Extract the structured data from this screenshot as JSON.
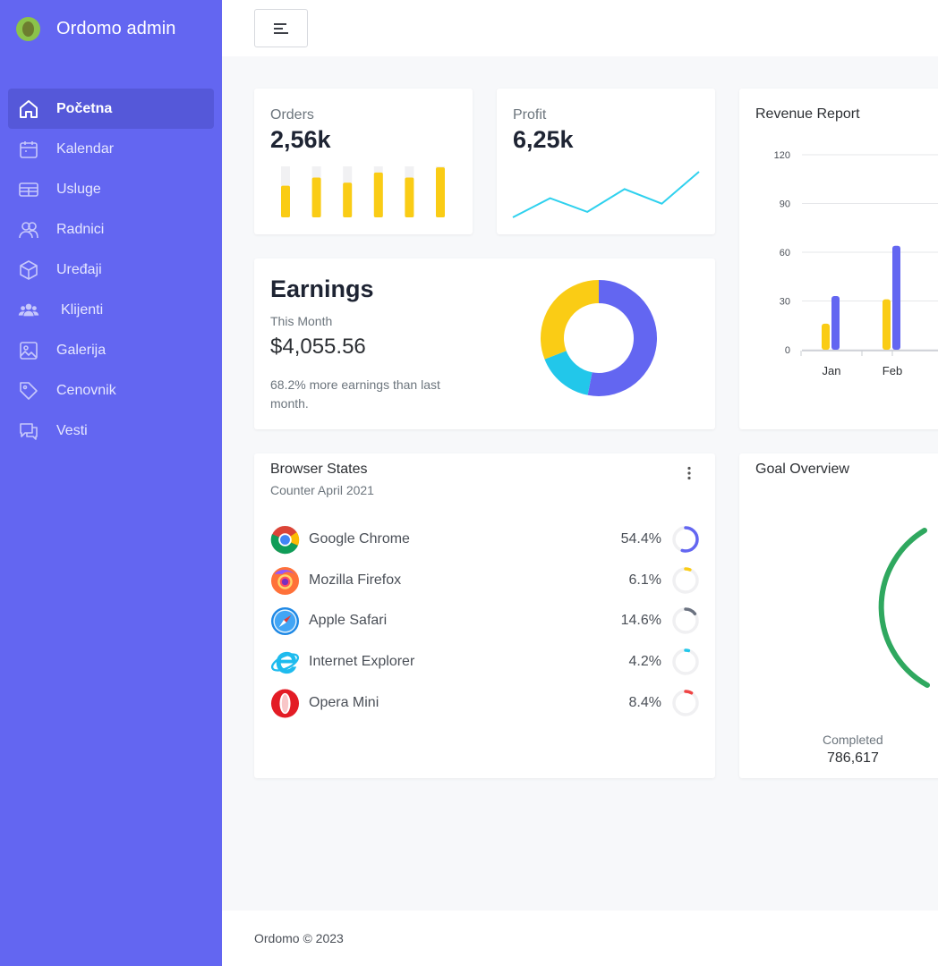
{
  "app": {
    "brand_name": "Ordomo admin"
  },
  "sidebar": {
    "items": [
      {
        "label": "Početna",
        "icon": "home-icon",
        "active": true
      },
      {
        "label": "Kalendar",
        "icon": "calendar-icon"
      },
      {
        "label": "Usluge",
        "icon": "services-icon"
      },
      {
        "label": "Radnici",
        "icon": "workers-icon"
      },
      {
        "label": "Uređaji",
        "icon": "device-box-icon"
      },
      {
        "label": "Klijenti",
        "icon": "clients-icon"
      },
      {
        "label": "Galerija",
        "icon": "gallery-icon"
      },
      {
        "label": "Cenovnik",
        "icon": "price-tag-icon"
      },
      {
        "label": "Vesti",
        "icon": "news-chat-icon"
      }
    ]
  },
  "topbar": {
    "menu_icon": "menu-icon"
  },
  "orders": {
    "label": "Orders",
    "value": "2,56k",
    "bars": [
      0.62,
      0.78,
      0.68,
      0.88,
      0.78,
      0.98
    ]
  },
  "profit": {
    "label": "Profit",
    "value": "6,25k",
    "line": [
      0.0,
      0.42,
      0.12,
      0.62,
      0.3,
      1.0
    ]
  },
  "earnings": {
    "title": "Earnings",
    "subtitle": "This Month",
    "amount": "$4,055.56",
    "note": "68.2% more earnings than last month.",
    "donut": [
      {
        "value": 53,
        "color": "#6366f1"
      },
      {
        "value": 16,
        "color": "#22c7ea"
      },
      {
        "value": 31,
        "color": "#facc15"
      }
    ]
  },
  "revenue": {
    "title": "Revenue Report",
    "chart_data": {
      "type": "bar",
      "categories": [
        "Jan",
        "Feb"
      ],
      "series": [
        {
          "values": [
            16,
            31
          ],
          "color": "#facc15"
        },
        {
          "values": [
            33,
            64
          ],
          "color": "#6366f1"
        }
      ],
      "yticks": [
        "120",
        "90",
        "60",
        "30",
        "0"
      ],
      "ylim": [
        0,
        120
      ],
      "grid": true
    }
  },
  "browsers": {
    "title": "Browser States",
    "subtitle": "Counter April 2021",
    "more_icon": "more-vertical-icon",
    "items": [
      {
        "name": "Google Chrome",
        "pct": "54.4%",
        "value": 0.544,
        "color": "#6366f1",
        "icon": "chrome-icon"
      },
      {
        "name": "Mozilla Firefox",
        "pct": "6.1%",
        "value": 0.061,
        "color": "#facc15",
        "icon": "firefox-icon"
      },
      {
        "name": "Apple Safari",
        "pct": "14.6%",
        "value": 0.146,
        "color": "#6b7280",
        "icon": "safari-icon"
      },
      {
        "name": "Internet Explorer",
        "pct": "4.2%",
        "value": 0.042,
        "color": "#22c7ea",
        "icon": "ie-icon"
      },
      {
        "name": "Opera Mini",
        "pct": "8.4%",
        "value": 0.084,
        "color": "#ef4444",
        "icon": "opera-icon"
      }
    ]
  },
  "goal": {
    "title": "Goal Overview",
    "completed_label": "Completed",
    "completed_value": "786,617",
    "color": "#2fa85f"
  },
  "footer": {
    "copyright": "Ordomo © 2023"
  }
}
